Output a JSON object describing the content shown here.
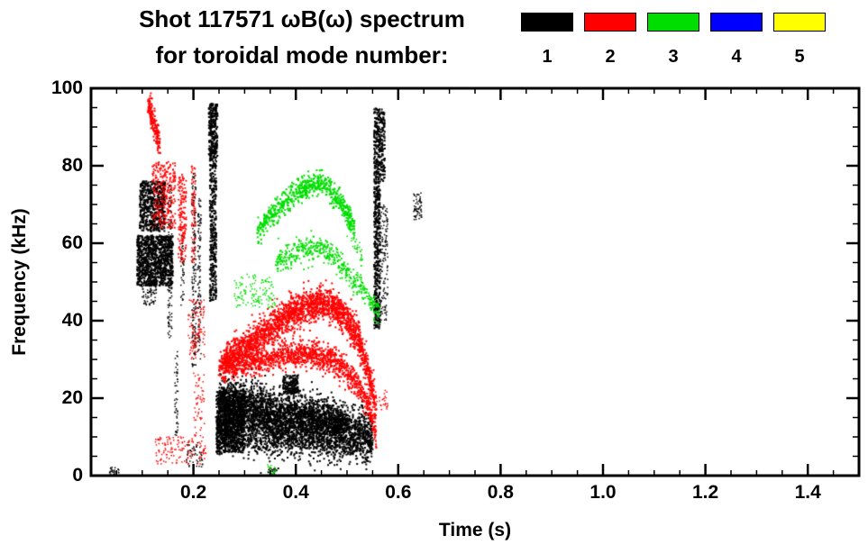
{
  "chart_data": {
    "type": "scatter",
    "title": "Shot 117571 ωB(ω) spectrum",
    "subtitle": "for toroidal mode number:",
    "xlabel": "Time (s)",
    "ylabel": "Frequency (kHz)",
    "xlim": [
      0,
      1.5
    ],
    "ylim": [
      0,
      100
    ],
    "grid": false,
    "legend_position": "top-right",
    "xticks": [
      {
        "v": 0.2,
        "label": "0.2"
      },
      {
        "v": 0.4,
        "label": "0.4"
      },
      {
        "v": 0.6,
        "label": "0.6"
      },
      {
        "v": 0.8,
        "label": "0.8"
      },
      {
        "v": 1.0,
        "label": "1.0"
      },
      {
        "v": 1.2,
        "label": "1.2"
      },
      {
        "v": 1.4,
        "label": "1.4"
      }
    ],
    "yticks": [
      {
        "v": 0,
        "label": "0"
      },
      {
        "v": 20,
        "label": "20"
      },
      {
        "v": 40,
        "label": "40"
      },
      {
        "v": 60,
        "label": "60"
      },
      {
        "v": 80,
        "label": "80"
      },
      {
        "v": 100,
        "label": "100"
      }
    ],
    "x_minor_step": 0.05,
    "y_minor_step": 5,
    "legend": [
      {
        "label": "1",
        "color": "#000000"
      },
      {
        "label": "2",
        "color": "#ff0000"
      },
      {
        "label": "3",
        "color": "#00dd00"
      },
      {
        "label": "4",
        "color": "#0000ff"
      },
      {
        "label": "5",
        "color": "#ffff00"
      }
    ],
    "series": [
      {
        "name": "toroidal mode n=1",
        "color": "#000000",
        "blobs": [
          {
            "k": "c",
            "t": [
              0.035,
              0.055
            ],
            "f": [
              0,
              2.5
            ],
            "n": 25,
            "s": 1.5
          },
          {
            "k": "c",
            "t": [
              0.095,
              0.145
            ],
            "f": [
              63,
              76
            ],
            "n": 550,
            "s": 2
          },
          {
            "k": "c",
            "t": [
              0.09,
              0.16
            ],
            "f": [
              49,
              62
            ],
            "n": 1000,
            "s": 2
          },
          {
            "k": "c",
            "t": [
              0.1,
              0.13
            ],
            "f": [
              44,
              50
            ],
            "n": 80,
            "s": 1.5
          },
          {
            "k": "c",
            "t": [
              0.15,
              0.158
            ],
            "f": [
              35,
              75
            ],
            "n": 130,
            "s": 1.5
          },
          {
            "k": "c",
            "t": [
              0.163,
              0.17
            ],
            "f": [
              10,
              32
            ],
            "n": 50,
            "s": 1.5
          },
          {
            "k": "c",
            "t": [
              0.175,
              0.182
            ],
            "f": [
              44,
              62
            ],
            "n": 45,
            "s": 1.5
          },
          {
            "k": "c",
            "t": [
              0.197,
              0.205
            ],
            "f": [
              28,
              78
            ],
            "n": 170,
            "s": 1.5
          },
          {
            "k": "c",
            "t": [
              0.208,
              0.215
            ],
            "f": [
              30,
              72
            ],
            "n": 110,
            "s": 1.5
          },
          {
            "k": "c",
            "t": [
              0.185,
              0.222
            ],
            "f": [
              2,
              9
            ],
            "n": 55,
            "s": 1.5
          },
          {
            "k": "c",
            "t": [
              0.232,
              0.245
            ],
            "f": [
              45,
              85
            ],
            "n": 380,
            "s": 2
          },
          {
            "k": "c",
            "t": [
              0.23,
              0.247
            ],
            "f": [
              82,
              96
            ],
            "n": 260,
            "s": 2
          },
          {
            "k": "v",
            "p": [
              [
                0.245,
                13
              ],
              [
                0.28,
                14
              ],
              [
                0.32,
                14
              ],
              [
                0.36,
                12.5
              ],
              [
                0.4,
                12.5
              ],
              [
                0.44,
                12
              ],
              [
                0.48,
                11
              ],
              [
                0.52,
                10.5
              ],
              [
                0.55,
                10
              ]
            ],
            "w": 3.5,
            "n": 2800,
            "s": 2
          },
          {
            "k": "v",
            "p": [
              [
                0.25,
                19
              ],
              [
                0.28,
                20
              ],
              [
                0.31,
                20
              ],
              [
                0.34,
                18
              ],
              [
                0.37,
                16
              ],
              [
                0.4,
                17
              ],
              [
                0.43,
                16
              ],
              [
                0.46,
                15
              ],
              [
                0.5,
                13
              ]
            ],
            "w": 2.5,
            "n": 1300,
            "s": 2
          },
          {
            "k": "c",
            "t": [
              0.245,
              0.3
            ],
            "f": [
              6,
              22
            ],
            "n": 900,
            "s": 2
          },
          {
            "k": "c",
            "t": [
              0.375,
              0.405
            ],
            "f": [
              21,
              26
            ],
            "n": 160,
            "s": 2
          },
          {
            "k": "c",
            "t": [
              0.3,
              0.55
            ],
            "f": [
              7,
              10
            ],
            "n": 250,
            "s": 1.5
          },
          {
            "k": "c",
            "t": [
              0.553,
              0.565
            ],
            "f": [
              38,
              76
            ],
            "n": 380,
            "s": 2
          },
          {
            "k": "c",
            "t": [
              0.553,
              0.574
            ],
            "f": [
              76,
              95
            ],
            "n": 300,
            "s": 2
          },
          {
            "k": "c",
            "t": [
              0.565,
              0.58
            ],
            "f": [
              40,
              70
            ],
            "n": 140,
            "s": 1.5
          },
          {
            "k": "c",
            "t": [
              0.63,
              0.646
            ],
            "f": [
              66,
              73
            ],
            "n": 60,
            "s": 1.5
          },
          {
            "k": "c",
            "t": [
              0.345,
              0.36
            ],
            "f": [
              0,
              2
            ],
            "n": 25,
            "s": 1.5
          }
        ]
      },
      {
        "name": "toroidal mode n=2",
        "color": "#ff0000",
        "blobs": [
          {
            "k": "v",
            "p": [
              [
                0.112,
                96
              ],
              [
                0.122,
                91
              ],
              [
                0.134,
                85
              ]
            ],
            "w": 1.8,
            "n": 160,
            "s": 2
          },
          {
            "k": "c",
            "t": [
              0.12,
              0.165
            ],
            "f": [
              64,
              81
            ],
            "n": 260,
            "s": 1.8
          },
          {
            "k": "c",
            "t": [
              0.17,
              0.186
            ],
            "f": [
              55,
              78
            ],
            "n": 150,
            "s": 1.8
          },
          {
            "k": "c",
            "t": [
              0.196,
              0.204
            ],
            "f": [
              55,
              80
            ],
            "n": 90,
            "s": 1.5
          },
          {
            "k": "c",
            "t": [
              0.19,
              0.222
            ],
            "f": [
              30,
              46
            ],
            "n": 110,
            "s": 1.5
          },
          {
            "k": "c",
            "t": [
              0.125,
              0.225
            ],
            "f": [
              3,
              10
            ],
            "n": 130,
            "s": 1.5
          },
          {
            "k": "c",
            "t": [
              0.2,
              0.222
            ],
            "f": [
              10,
              27
            ],
            "n": 55,
            "s": 1.5
          },
          {
            "k": "v",
            "p": [
              [
                0.26,
                29
              ],
              [
                0.3,
                33
              ],
              [
                0.34,
                37
              ],
              [
                0.38,
                41
              ],
              [
                0.42,
                43.5
              ],
              [
                0.45,
                44.5
              ],
              [
                0.48,
                43
              ],
              [
                0.5,
                40
              ],
              [
                0.52,
                36
              ],
              [
                0.535,
                30
              ],
              [
                0.548,
                23
              ],
              [
                0.556,
                17
              ]
            ],
            "w": 2.2,
            "n": 2100,
            "s": 2
          },
          {
            "k": "v",
            "p": [
              [
                0.25,
                28
              ],
              [
                0.29,
                29
              ],
              [
                0.33,
                30
              ],
              [
                0.37,
                31
              ],
              [
                0.41,
                31.5
              ],
              [
                0.45,
                31
              ],
              [
                0.48,
                29
              ],
              [
                0.5,
                27
              ],
              [
                0.52,
                24
              ],
              [
                0.54,
                19
              ],
              [
                0.552,
                13
              ],
              [
                0.558,
                9
              ]
            ],
            "w": 1.8,
            "n": 1300,
            "s": 2
          },
          {
            "k": "c",
            "t": [
              0.555,
              0.58
            ],
            "f": [
              17,
              22
            ],
            "n": 30,
            "s": 1.5
          }
        ]
      },
      {
        "name": "toroidal mode n=3",
        "color": "#00dd00",
        "blobs": [
          {
            "k": "v",
            "p": [
              [
                0.325,
                63
              ],
              [
                0.35,
                67
              ],
              [
                0.38,
                71
              ],
              [
                0.41,
                74
              ],
              [
                0.44,
                75.5
              ],
              [
                0.46,
                75
              ],
              [
                0.48,
                72
              ],
              [
                0.5,
                68
              ],
              [
                0.515,
                64
              ]
            ],
            "w": 1.5,
            "n": 650,
            "s": 2
          },
          {
            "k": "v",
            "p": [
              [
                0.5,
                66
              ],
              [
                0.515,
                61
              ],
              [
                0.53,
                56
              ]
            ],
            "w": 1.5,
            "n": 70,
            "s": 1.5
          },
          {
            "k": "v",
            "p": [
              [
                0.36,
                55
              ],
              [
                0.39,
                57
              ],
              [
                0.42,
                58.5
              ],
              [
                0.45,
                59
              ],
              [
                0.47,
                57
              ],
              [
                0.49,
                54
              ],
              [
                0.51,
                51
              ],
              [
                0.53,
                48
              ],
              [
                0.55,
                44
              ],
              [
                0.562,
                42
              ]
            ],
            "w": 1.6,
            "n": 480,
            "s": 1.8
          },
          {
            "k": "c",
            "t": [
              0.28,
              0.36
            ],
            "f": [
              43,
              52
            ],
            "n": 130,
            "s": 1.5
          },
          {
            "k": "c",
            "t": [
              0.345,
              0.36
            ],
            "f": [
              0,
              3
            ],
            "n": 20,
            "s": 1.5
          }
        ]
      },
      {
        "name": "toroidal mode n=4",
        "color": "#0000ff",
        "blobs": []
      },
      {
        "name": "toroidal mode n=5",
        "color": "#ffff00",
        "blobs": []
      }
    ]
  }
}
